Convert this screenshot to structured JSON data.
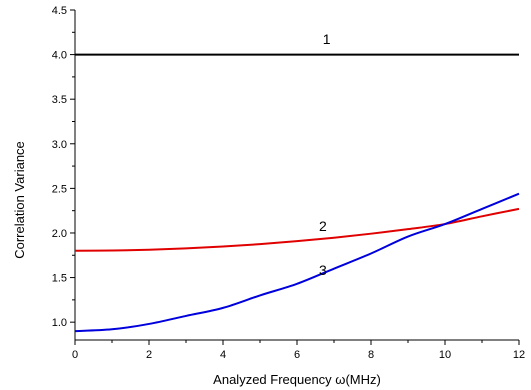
{
  "chart_data": {
    "type": "line",
    "xlabel": "Analyzed Frequency ω(MHz)",
    "ylabel": "Correlation Variance",
    "xlim": [
      0,
      12
    ],
    "ylim": [
      0.8,
      4.5
    ],
    "xticks": [
      0,
      2,
      4,
      6,
      8,
      10,
      12
    ],
    "xtick_labels": [
      "0",
      "2",
      "4",
      "6",
      "8",
      "10",
      "12"
    ],
    "yticks": [
      1.0,
      1.5,
      2.0,
      2.5,
      3.0,
      3.5,
      4.0,
      4.5
    ],
    "ytick_labels": [
      "1.0",
      "1.5",
      "2.0",
      "2.5",
      "3.0",
      "3.5",
      "4.0",
      "4.5"
    ],
    "grid": false,
    "legend": "none",
    "x": [
      0,
      1,
      2,
      3,
      4,
      5,
      6,
      7,
      8,
      9,
      10,
      11,
      12
    ],
    "series": [
      {
        "label": "1",
        "color": "#000000",
        "values": [
          4.0,
          4.0,
          4.0,
          4.0,
          4.0,
          4.0,
          4.0,
          4.0,
          4.0,
          4.0,
          4.0,
          4.0,
          4.0
        ],
        "label_x": 6.8,
        "label_y": 4.12
      },
      {
        "label": "2",
        "color": "#e00000",
        "values": [
          1.8,
          1.803,
          1.812,
          1.827,
          1.848,
          1.875,
          1.908,
          1.947,
          1.992,
          2.043,
          2.1,
          2.187,
          2.27
        ],
        "label_x": 6.7,
        "label_y": 2.02
      },
      {
        "label": "3",
        "color": "#0000dd",
        "values": [
          0.9,
          0.92,
          0.98,
          1.07,
          1.16,
          1.3,
          1.43,
          1.6,
          1.77,
          1.96,
          2.1,
          2.27,
          2.44
        ],
        "label_x": 6.7,
        "label_y": 1.53
      }
    ]
  }
}
